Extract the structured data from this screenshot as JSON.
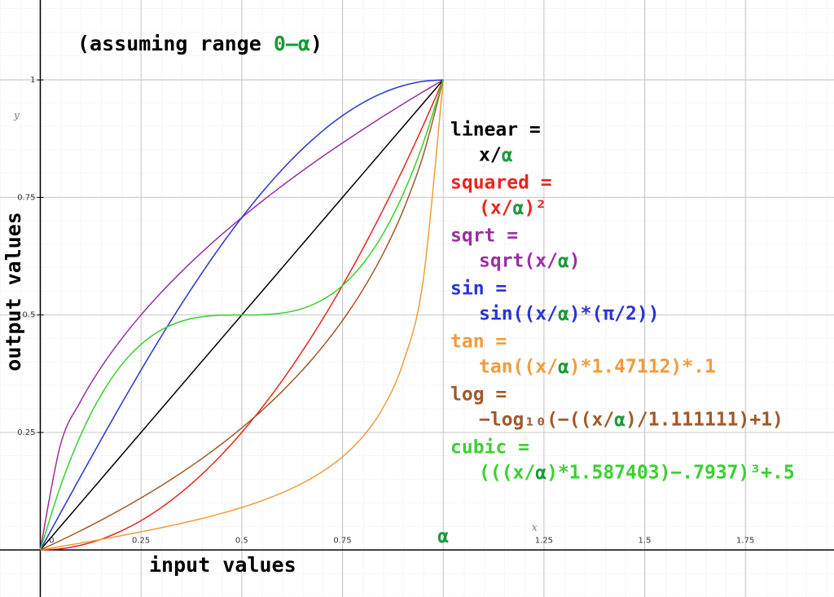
{
  "chart_data": {
    "type": "line",
    "title": "(assuming range 0–α)",
    "x_label": "x",
    "y_label": "y",
    "x_axis_title": "input values",
    "y_axis_title": "output values",
    "x": [
      0,
      0.05,
      0.1,
      0.15,
      0.2,
      0.25,
      0.3,
      0.35,
      0.4,
      0.45,
      0.5,
      0.55,
      0.6,
      0.65,
      0.7,
      0.75,
      0.8,
      0.85,
      0.9,
      0.95,
      1
    ],
    "series": [
      {
        "name": "linear =",
        "formula": "x/α",
        "color": "#000000",
        "values": [
          0,
          0.05,
          0.1,
          0.15,
          0.2,
          0.25,
          0.3,
          0.35,
          0.4,
          0.45,
          0.5,
          0.55,
          0.6,
          0.65,
          0.7,
          0.75,
          0.8,
          0.85,
          0.9,
          0.95,
          1
        ]
      },
      {
        "name": "squared =",
        "formula": "(x/α)²",
        "color": "#e8261c",
        "values": [
          0,
          0.0025,
          0.01,
          0.0225,
          0.04,
          0.0625,
          0.09,
          0.1225,
          0.16,
          0.2025,
          0.25,
          0.3025,
          0.36,
          0.4225,
          0.49,
          0.5625,
          0.64,
          0.7225,
          0.81,
          0.9025,
          1
        ]
      },
      {
        "name": "sqrt =",
        "formula": "sqrt(x/α)",
        "color": "#9b2ea0",
        "values": [
          0,
          0.2236,
          0.3162,
          0.3873,
          0.4472,
          0.5,
          0.5477,
          0.5916,
          0.6325,
          0.6708,
          0.7071,
          0.7416,
          0.7746,
          0.8062,
          0.8367,
          0.866,
          0.8944,
          0.922,
          0.9487,
          0.9747,
          1
        ]
      },
      {
        "name": "sin =",
        "formula": "sin((x/α)*(π/2))",
        "color": "#2a34d6",
        "values": [
          0,
          0.0785,
          0.1564,
          0.2334,
          0.309,
          0.3827,
          0.454,
          0.5225,
          0.5878,
          0.6494,
          0.7071,
          0.7604,
          0.809,
          0.8526,
          0.891,
          0.9239,
          0.9511,
          0.9724,
          0.9877,
          0.9969,
          1
        ]
      },
      {
        "name": "tan =",
        "formula": "tan((x/α)*1.47112)*.1",
        "color": "#f29b3a",
        "values": [
          0,
          0.0074,
          0.0148,
          0.0224,
          0.0303,
          0.0386,
          0.0473,
          0.0566,
          0.0667,
          0.0779,
          0.0904,
          0.1048,
          0.1216,
          0.1417,
          0.1665,
          0.1981,
          0.2407,
          0.3014,
          0.397,
          0.5714,
          1
        ]
      },
      {
        "name": "log =",
        "formula": "−log₁₀(−((x/α)/1.111111)+1)",
        "color": "#a0592a",
        "values": [
          0,
          0.02,
          0.041,
          0.063,
          0.0862,
          0.1107,
          0.1367,
          0.1643,
          0.1938,
          0.2255,
          0.2596,
          0.2967,
          0.3372,
          0.382,
          0.4318,
          0.4881,
          0.5528,
          0.6289,
          0.7212,
          0.8386,
          1
        ]
      },
      {
        "name": "cubic =",
        "formula": "(((x/α)*1.587403)−.7937)³+.5",
        "color": "#39d12f",
        "values": [
          0,
          0.1355,
          0.2439,
          0.3285,
          0.392,
          0.4375,
          0.468,
          0.4865,
          0.496,
          0.4995,
          0.5,
          0.5005,
          0.504,
          0.5135,
          0.532,
          0.5625,
          0.608,
          0.6715,
          0.7561,
          0.8645,
          1
        ]
      }
    ],
    "xlim": [
      -0.1,
      1.97
    ],
    "ylim": [
      -0.1,
      1.17
    ],
    "xticks": [
      0,
      0.25,
      0.5,
      0.75,
      {
        "value": 1,
        "label": "α"
      },
      1.25,
      1.5,
      1.75
    ],
    "yticks": [
      0.25,
      0.5,
      0.75,
      1
    ],
    "grid": true
  }
}
